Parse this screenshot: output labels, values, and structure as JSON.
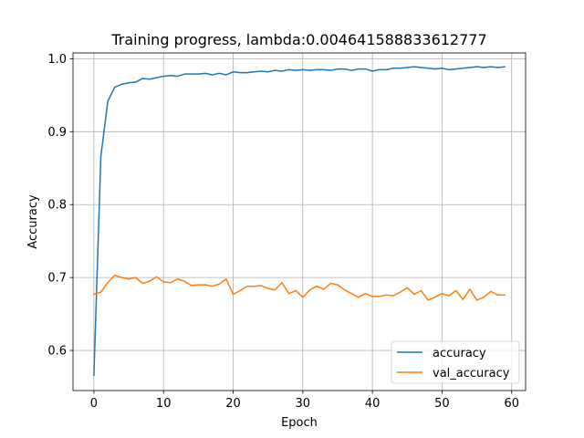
{
  "chart_data": {
    "type": "line",
    "title": "Training progress, lambda:0.004641588833612777",
    "xlabel": "Epoch",
    "ylabel": "Accuracy",
    "xlim": [
      -3,
      62
    ],
    "ylim": [
      0.545,
      1.008
    ],
    "grid": true,
    "legend_position": "lower right",
    "x_ticks": [
      0,
      10,
      20,
      30,
      40,
      50,
      60
    ],
    "y_ticks": [
      0.6,
      0.7,
      0.8,
      0.9,
      1.0
    ],
    "x_tick_labels": [
      "0",
      "10",
      "20",
      "30",
      "40",
      "50",
      "60"
    ],
    "y_tick_labels": [
      "0.6",
      "0.7",
      "0.8",
      "0.9",
      "1.0"
    ],
    "x": [
      0,
      1,
      2,
      3,
      4,
      5,
      6,
      7,
      8,
      9,
      10,
      11,
      12,
      13,
      14,
      15,
      16,
      17,
      18,
      19,
      20,
      21,
      22,
      23,
      24,
      25,
      26,
      27,
      28,
      29,
      30,
      31,
      32,
      33,
      34,
      35,
      36,
      37,
      38,
      39,
      40,
      41,
      42,
      43,
      44,
      45,
      46,
      47,
      48,
      49,
      50,
      51,
      52,
      53,
      54,
      55,
      56,
      57,
      58,
      59
    ],
    "series": [
      {
        "name": "accuracy",
        "color": "#1f77b4",
        "values": [
          0.566,
          0.866,
          0.942,
          0.961,
          0.965,
          0.967,
          0.968,
          0.973,
          0.972,
          0.974,
          0.976,
          0.977,
          0.976,
          0.979,
          0.979,
          0.979,
          0.98,
          0.978,
          0.98,
          0.978,
          0.982,
          0.981,
          0.981,
          0.982,
          0.983,
          0.982,
          0.984,
          0.983,
          0.985,
          0.984,
          0.985,
          0.984,
          0.985,
          0.985,
          0.984,
          0.986,
          0.986,
          0.984,
          0.986,
          0.986,
          0.983,
          0.985,
          0.985,
          0.987,
          0.987,
          0.988,
          0.989,
          0.988,
          0.987,
          0.986,
          0.987,
          0.985,
          0.986,
          0.987,
          0.988,
          0.989,
          0.988,
          0.989,
          0.988,
          0.989
        ]
      },
      {
        "name": "val_accuracy",
        "color": "#ff7f0e",
        "values": [
          0.677,
          0.68,
          0.693,
          0.703,
          0.7,
          0.698,
          0.7,
          0.692,
          0.695,
          0.701,
          0.694,
          0.693,
          0.698,
          0.695,
          0.689,
          0.69,
          0.69,
          0.688,
          0.691,
          0.698,
          0.677,
          0.682,
          0.688,
          0.688,
          0.689,
          0.685,
          0.683,
          0.693,
          0.678,
          0.682,
          0.673,
          0.683,
          0.688,
          0.684,
          0.692,
          0.69,
          0.683,
          0.678,
          0.673,
          0.678,
          0.674,
          0.674,
          0.676,
          0.675,
          0.68,
          0.686,
          0.677,
          0.682,
          0.669,
          0.673,
          0.678,
          0.675,
          0.682,
          0.67,
          0.684,
          0.669,
          0.673,
          0.681,
          0.676,
          0.676
        ]
      }
    ]
  }
}
